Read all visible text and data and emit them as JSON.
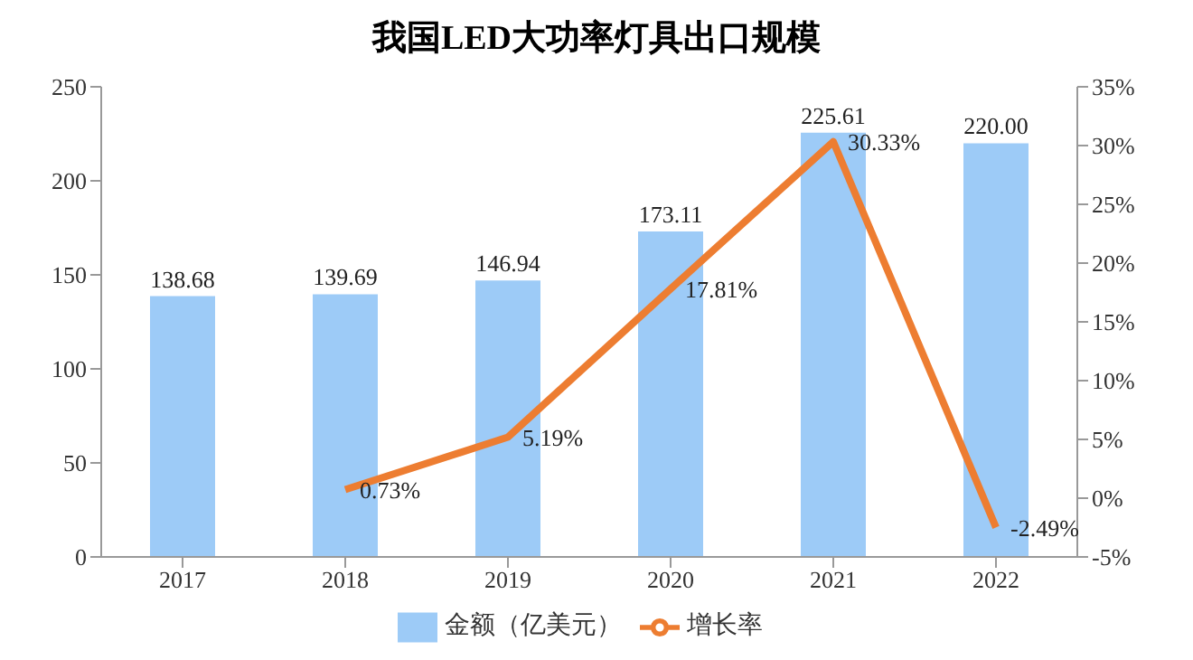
{
  "chart_data": {
    "type": "bar",
    "title": "我国LED大功率灯具出口规模",
    "categories": [
      "2017",
      "2018",
      "2019",
      "2020",
      "2021",
      "2022"
    ],
    "series": [
      {
        "name": "金额（亿美元）",
        "color": "#9dcbf7",
        "values": [
          138.68,
          139.69,
          146.94,
          173.11,
          225.61,
          220.0
        ],
        "value_labels": [
          "138.68",
          "139.69",
          "146.94",
          "173.11",
          "225.61",
          "220.00"
        ]
      },
      {
        "name": "增长率",
        "type": "line",
        "axis": "y2",
        "color": "#ed7d31",
        "values": [
          null,
          0.73,
          5.19,
          17.81,
          30.33,
          -2.49
        ],
        "value_labels": [
          null,
          "0.73%",
          "5.19%",
          "17.81%",
          "30.33%",
          "-2.49%"
        ]
      }
    ],
    "ylim": [
      0,
      250
    ],
    "yticks": [
      0,
      50,
      100,
      150,
      200,
      250
    ],
    "y2lim": [
      -5,
      35
    ],
    "y2ticks": [
      {
        "value": -5,
        "label": "-5%"
      },
      {
        "value": 0,
        "label": "0%"
      },
      {
        "value": 5,
        "label": "5%"
      },
      {
        "value": 10,
        "label": "10%"
      },
      {
        "value": 15,
        "label": "15%"
      },
      {
        "value": 20,
        "label": "20%"
      },
      {
        "value": 25,
        "label": "25%"
      },
      {
        "value": 30,
        "label": "30%"
      },
      {
        "value": 35,
        "label": "35%"
      }
    ],
    "grid": false,
    "legend": "bottom",
    "marker": "none",
    "line_style": "solid"
  }
}
